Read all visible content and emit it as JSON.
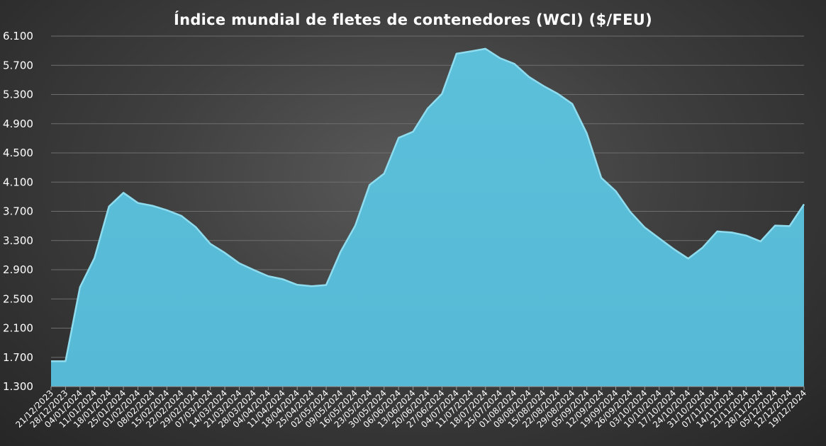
{
  "chart_data": {
    "type": "area",
    "title": "Índice mundial de fletes de contenedores (WCI) ($/FEU)",
    "xlabel": "",
    "ylabel": "",
    "ylim": [
      1300,
      6100
    ],
    "y_ticks": [
      {
        "value": 1300,
        "label": "1.300"
      },
      {
        "value": 1700,
        "label": "1.700"
      },
      {
        "value": 2100,
        "label": "2.100"
      },
      {
        "value": 2500,
        "label": "2.500"
      },
      {
        "value": 2900,
        "label": "2.900"
      },
      {
        "value": 3300,
        "label": "3.300"
      },
      {
        "value": 3700,
        "label": "3.700"
      },
      {
        "value": 4100,
        "label": "4.100"
      },
      {
        "value": 4500,
        "label": "4.500"
      },
      {
        "value": 4900,
        "label": "4.900"
      },
      {
        "value": 5300,
        "label": "5.300"
      },
      {
        "value": 5700,
        "label": "5.700"
      },
      {
        "value": 6100,
        "label": "6.100"
      }
    ],
    "grid": true,
    "legend": "none",
    "colors": {
      "fill": "#56bad6",
      "edge": "#8fdcef"
    },
    "categories": [
      "21/12/2023",
      "28/12/2023",
      "04/01/2024",
      "11/01/2024",
      "18/01/2024",
      "25/01/2024",
      "01/02/2024",
      "08/02/2024",
      "15/02/2024",
      "22/02/2024",
      "29/02/2024",
      "07/03/2024",
      "14/03/2024",
      "21/03/2024",
      "28/03/2024",
      "04/04/2024",
      "11/04/2024",
      "18/04/2024",
      "25/04/2024",
      "02/05/2024",
      "09/05/2024",
      "16/05/2024",
      "23/05/2024",
      "30/05/2024",
      "06/06/2024",
      "13/06/2024",
      "20/06/2024",
      "27/06/2024",
      "04/07/2024",
      "11/07/2024",
      "18/07/2024",
      "25/07/2024",
      "01/08/2024",
      "08/08/2024",
      "15/08/2024",
      "22/08/2024",
      "29/08/2024",
      "05/09/2024",
      "12/09/2024",
      "19/09/2024",
      "26/09/2024",
      "03/10/2024",
      "10/10/2024",
      "17/10/2024",
      "24/10/2024",
      "31/10/2024",
      "07/11/2024",
      "14/11/2024",
      "21/11/2024",
      "28/11/2024",
      "05/12/2024",
      "12/12/2024",
      "19/12/2024"
    ],
    "series": [
      {
        "values": [
          1656,
          1656,
          2670,
          3072,
          3777,
          3964,
          3824,
          3786,
          3725,
          3648,
          3493,
          3265,
          3141,
          2998,
          2907,
          2821,
          2780,
          2703,
          2685,
          2700,
          3159,
          3511,
          4072,
          4226,
          4716,
          4801,
          5117,
          5319,
          5868,
          5901,
          5936,
          5808,
          5730,
          5551,
          5428,
          5319,
          5181,
          4775,
          4168,
          3986,
          3703,
          3489,
          3340,
          3193,
          3063,
          3213,
          3434,
          3420,
          3378,
          3298,
          3515,
          3507,
          3806
        ]
      }
    ]
  }
}
